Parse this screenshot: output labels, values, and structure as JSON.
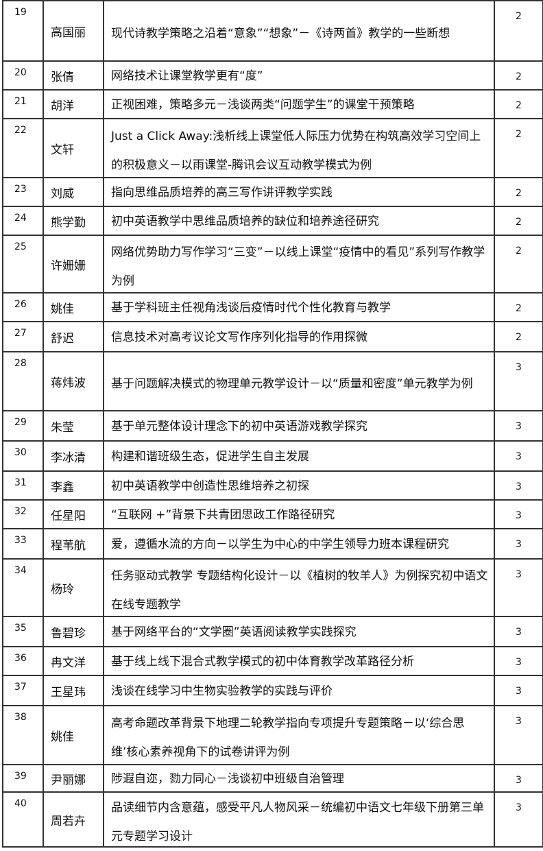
{
  "rows": [
    {
      "no": "19",
      "name": "高国丽",
      "title": "现代诗教学策略之沿着“意象”“想象”－《诗两首》教学的一些断想",
      "score": "2"
    },
    {
      "no": "20",
      "name": "张倩",
      "title": "网络技术让课堂教学更有“度”",
      "score": "2"
    },
    {
      "no": "21",
      "name": "胡洋",
      "title": "正视困难，策略多元－浅谈两类“问题学生”的课堂干预策略",
      "score": "2"
    },
    {
      "no": "22",
      "name": "文轩",
      "title": "Just a Click Away:浅析线上课堂低人际压力优势在构筑高效学习空间上的积极意义－以雨课堂-腾讯会议互动教学模式为例",
      "score": "2"
    },
    {
      "no": "23",
      "name": "刘威",
      "title": "指向思维品质培养的高三写作讲评教学实践",
      "score": "2"
    },
    {
      "no": "24",
      "name": "熊学勤",
      "title": "初中英语教学中思维品质培养的缺位和培养途径研究",
      "score": "2"
    },
    {
      "no": "25",
      "name": "许姗姗",
      "title": "网络优势助力写作学习“三变”－以线上课堂“疫情中的看见”系列写作教学为例",
      "score": "2"
    },
    {
      "no": "26",
      "name": "姚佳",
      "title": "基于学科班主任视角浅谈后疫情时代个性化教育与教学",
      "score": "2"
    },
    {
      "no": "27",
      "name": "舒迟",
      "title": "信息技术对高考议论文写作序列化指导的作用探微",
      "score": "2"
    },
    {
      "no": "28",
      "name": "蒋炜波",
      "title": "基于问题解决模式的物理单元教学设计－以“质量和密度”单元教学为例",
      "score": "3"
    },
    {
      "no": "29",
      "name": "朱莹",
      "title": "基于单元整体设计理念下的初中英语游戏教学探究",
      "score": "3"
    },
    {
      "no": "30",
      "name": "李冰清",
      "title": "构建和谐班级生态，促进学生自主发展",
      "score": "3"
    },
    {
      "no": "31",
      "name": "李鑫",
      "title": "初中英语教学中创造性思维培养之初探",
      "score": "3"
    },
    {
      "no": "32",
      "name": "任星阳",
      "title": "“互联网 +”背景下共青团思政工作路径研究",
      "score": "3"
    },
    {
      "no": "33",
      "name": "程苇航",
      "title": "爱，遵循水流的方向－以学生为中心的中学生领导力班本课程研究",
      "score": "3"
    },
    {
      "no": "34",
      "name": "杨玲",
      "title": "任务驱动式教学 专题结构化设计－以《植树的牧羊人》为例探究初中语文在线专题教学",
      "score": "3"
    },
    {
      "no": "35",
      "name": "鲁碧珍",
      "title": "基于网络平台的“文学圈”英语阅读教学实践探究",
      "score": "3"
    },
    {
      "no": "36",
      "name": "冉文洋",
      "title": "基于线上线下混合式教学模式的初中体育教学改革路径分析",
      "score": "3"
    },
    {
      "no": "37",
      "name": "王星玮",
      "title": "浅谈在线学习中生物实验教学的实践与评价",
      "score": "3"
    },
    {
      "no": "38",
      "name": "姚佳",
      "title": "高考命题改革背景下地理二轮教学指向专项提升专题策略－以‘综合思维’核心素养视角下的试卷讲评为例",
      "score": "3"
    },
    {
      "no": "39",
      "name": "尹丽娜",
      "title": "陟遐自迩，勠力同心－浅谈初中班级自治管理",
      "score": "3"
    },
    {
      "no": "40",
      "name": "周若卉",
      "title": "品读细节内含意蕴，感受平凡人物风采－统编初中语文七年级下册第三单元专题学习设计",
      "score": "3"
    }
  ]
}
